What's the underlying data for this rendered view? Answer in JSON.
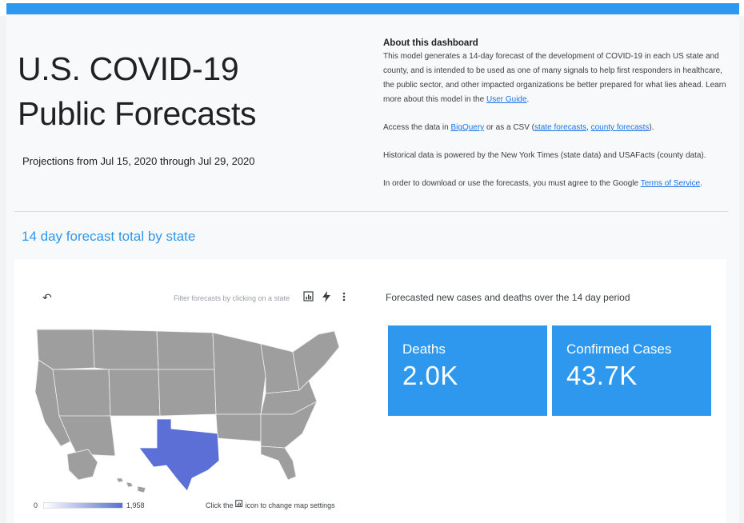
{
  "header": {
    "title_line1": "U.S. COVID-19",
    "title_line2": "Public Forecasts",
    "subtitle": "Projections from Jul 15, 2020 through Jul 29, 2020"
  },
  "about": {
    "heading": "About this dashboard",
    "para1_text": "This model generates a 14-day forecast of the development of COVID-19 in each US state and county, and is intended to be used as one of many signals to help first responders in healthcare, the public sector, and other impacted organizations be better prepared for what lies ahead. Learn more about this model in the ",
    "para1_link": "User Guide",
    "para1_end": ".",
    "para2_pre": "Access the data in ",
    "para2_link1": "BigQuery",
    "para2_mid": " or as a CSV (",
    "para2_link2": "state forecasts",
    "para2_sep": ", ",
    "para2_link3": "county forecasts",
    "para2_end": ").",
    "para3": "Historical data is powered by the New York Times (state data) and USAFacts (county data).",
    "para4_pre": "In order to download or use the forecasts, you must agree to the Google ",
    "para4_link": "Terms of Service",
    "para4_end": "."
  },
  "section": {
    "title": "14 day forecast total by state"
  },
  "map_panel": {
    "filter_hint": "Filter forecasts by clicking on a state",
    "legend_min": "0",
    "legend_max": "1,958",
    "note_pre": "Click the ",
    "note_post": " icon to change map settings",
    "highlight_color": "#5b6fd6",
    "base_color": "#9e9e9e"
  },
  "kpis": {
    "caption": "Forecasted new cases and deaths over the 14 day period",
    "deaths_label": "Deaths",
    "deaths_value": "2.0K",
    "cases_label": "Confirmed Cases",
    "cases_value": "43.7K",
    "accent_color": "#2d98ee"
  },
  "icons": {
    "undo": "undo-icon",
    "chart_settings": "chart-settings-icon",
    "bolt": "bolt-icon",
    "more": "more-vert-icon"
  }
}
